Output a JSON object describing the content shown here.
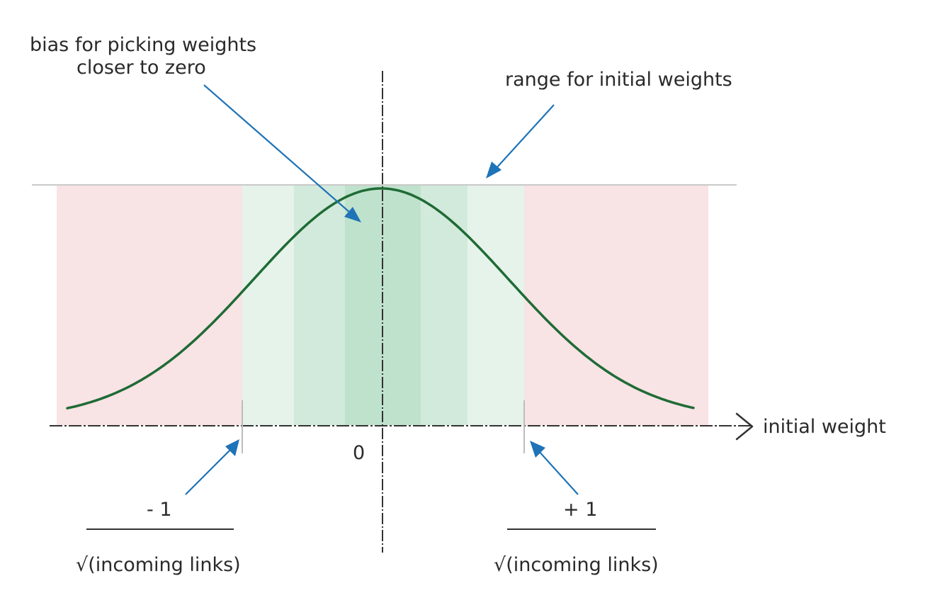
{
  "annotations": {
    "bias_line1": "bias for picking weights",
    "bias_line2": "closer to zero",
    "range": "range for initial weights",
    "x_axis": "initial weight",
    "zero": "0",
    "neg_numerator": "- 1",
    "neg_denominator": "√(incoming links)",
    "pos_numerator": "+ 1",
    "pos_denominator": "√(incoming links)"
  },
  "colors": {
    "outside_range": "#f8e3e5",
    "band_light": "#e6f3ea",
    "band_mid": "#d2eadb",
    "band_dark": "#bfe2cc",
    "curve": "#1f6b35",
    "arrow": "#1f73b7",
    "axis": "#333333"
  }
}
